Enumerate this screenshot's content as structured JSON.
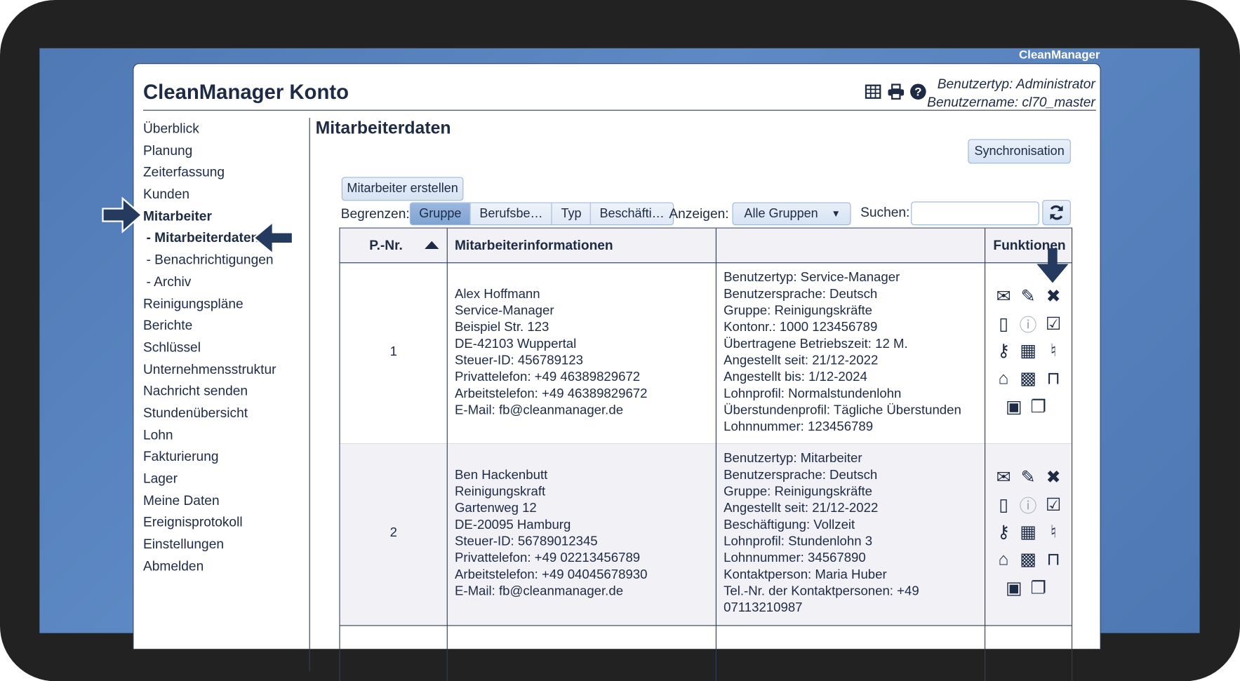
{
  "brand": "CleanManager",
  "header": {
    "title": "CleanManager Konto",
    "user_type": "Benutzertyp: Administrator",
    "user_name": "Benutzername: cl70_master",
    "icons": [
      "table-icon",
      "print-icon",
      "help-icon"
    ]
  },
  "sidebar": {
    "items": [
      {
        "label": "Überblick"
      },
      {
        "label": "Planung"
      },
      {
        "label": "Zeiterfassung"
      },
      {
        "label": "Kunden"
      },
      {
        "label": "Mitarbeiter",
        "active": true
      },
      {
        "label": "- Mitarbeiterdaten",
        "active": true,
        "sub": true
      },
      {
        "label": "- Benachrichtigungen",
        "sub": true
      },
      {
        "label": "- Archiv",
        "sub": true
      },
      {
        "label": "Reinigungspläne"
      },
      {
        "label": "Berichte"
      },
      {
        "label": "Schlüssel"
      },
      {
        "label": "Unternehmensstruktur"
      },
      {
        "label": "Nachricht senden"
      },
      {
        "label": "Stundenübersicht"
      },
      {
        "label": "Lohn"
      },
      {
        "label": "Fakturierung"
      },
      {
        "label": "Lager"
      },
      {
        "label": "Meine Daten"
      },
      {
        "label": "Ereignisprotokoll"
      },
      {
        "label": "Einstellungen"
      },
      {
        "label": "Abmelden"
      }
    ]
  },
  "main": {
    "heading": "Mitarbeiterdaten",
    "sync_label": "Synchronisation",
    "create_label": "Mitarbeiter erstellen",
    "filter": {
      "limit_label": "Begrenzen:",
      "segments": [
        "Gruppe",
        "Berufsbe…",
        "Typ",
        "Beschäfti…"
      ],
      "active_segment": "Gruppe",
      "show_label": "Anzeigen:",
      "show_value": "Alle Gruppen",
      "search_label": "Suchen:",
      "search_value": "",
      "search_placeholder": ""
    },
    "table": {
      "headers": [
        "P.-Nr.",
        "Mitarbeiterinformationen",
        "",
        "Funktionen"
      ],
      "sort": "ascending",
      "rows": [
        {
          "nr": "1",
          "info": [
            "Alex Hoffmann",
            "Service-Manager",
            "Beispiel Str. 123",
            "DE-42103 Wuppertal",
            "Steuer-ID: 456789123",
            "Privattelefon: +49 46389829672",
            "Arbeitstelefon: +49 46389829672",
            "E-Mail: fb@cleanmanager.de"
          ],
          "details": [
            "Benutzertyp: Service-Manager",
            "Benutzersprache: Deutsch",
            "Gruppe: Reinigungskräfte",
            "Kontonr.: 1000 123456789",
            "Übertragene Betriebszeit: 12 M.",
            "Angestellt seit: 21/12-2022",
            "Angestellt bis: 1/12-2024",
            "Lohnprofil: Normalstundenlohn",
            "Überstundenprofil: Tägliche Überstunden",
            "Lohnnummer: 123456789"
          ]
        },
        {
          "nr": "2",
          "info": [
            "Ben Hackenbutt",
            "Reinigungskraft",
            "Gartenweg 12",
            "DE-20095 Hamburg",
            "Steuer-ID: 56789012345",
            "Privattelefon: +49 02213456789",
            "Arbeitstelefon: +49 04045678930",
            "E-Mail: fb@cleanmanager.de"
          ],
          "details": [
            "Benutzertyp: Mitarbeiter",
            "Benutzersprache: Deutsch",
            "Gruppe: Reinigungskräfte",
            "Angestellt seit: 21/12-2022",
            "Beschäftigung: Vollzeit",
            "Lohnprofil: Stundenlohn 3",
            "Lohnnummer: 34567890",
            "Kontaktperson: Maria Huber",
            "Tel.-Nr. der Kontaktpersonen: +49",
            "07113210987"
          ]
        }
      ],
      "function_icons": [
        "mail-icon",
        "edit-icon",
        "delete-icon",
        "door-icon",
        "info-icon",
        "clipboard-check-icon",
        "key-icon",
        "calendar-icon",
        "bell-icon",
        "home-icon",
        "qr-code-icon",
        "unlock-icon",
        "person-icon",
        "documents-icon"
      ]
    }
  },
  "colors": {
    "accent": "#1d2b45",
    "arrow": "#243a5e",
    "background": "#5a86c0"
  }
}
